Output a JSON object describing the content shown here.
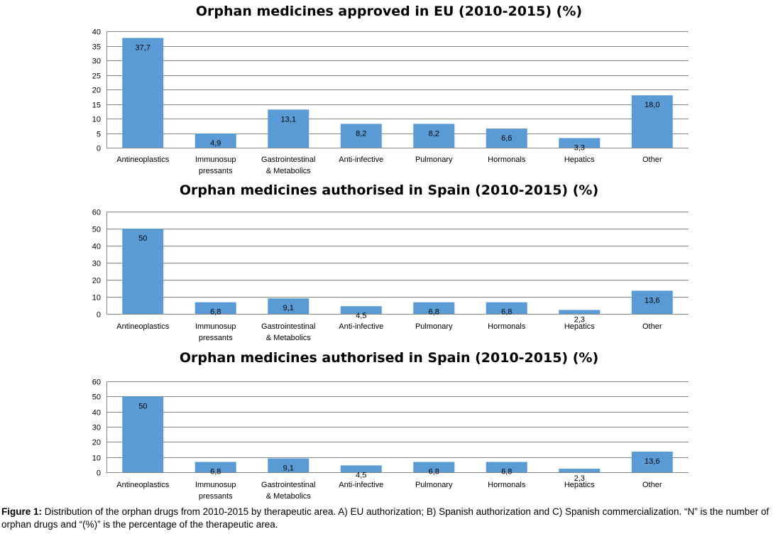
{
  "chart_data": [
    {
      "type": "bar",
      "title": "Orphan medicines approved in EU (2010-2015)  (%)",
      "categories": [
        [
          "Antineoplastics"
        ],
        [
          "Immunosup",
          "pressants"
        ],
        [
          "Gastrointestinal",
          "& Metabolics"
        ],
        [
          "Anti-infective"
        ],
        [
          "Pulmonary"
        ],
        [
          "Hormonals"
        ],
        [
          "Hepatics"
        ],
        [
          "Other"
        ]
      ],
      "values": [
        37.7,
        4.9,
        13.1,
        8.2,
        8.2,
        6.6,
        3.3,
        18.0
      ],
      "value_labels": [
        "37,7",
        "4,9",
        "13,1",
        "8,2",
        "8,2",
        "6,6",
        "3,3",
        "18,0"
      ],
      "ylim": [
        0,
        40
      ],
      "yticks": [
        0,
        5,
        10,
        15,
        20,
        25,
        30,
        35,
        40
      ],
      "grid": true,
      "bar_color": "#5b9bd5"
    },
    {
      "type": "bar",
      "title": "Orphan medicines authorised in Spain (2010-2015)  (%)",
      "categories": [
        [
          "Antineoplastics"
        ],
        [
          "Immunosup",
          "pressants"
        ],
        [
          "Gastrointestinal",
          "& Metabolics"
        ],
        [
          "Anti-infective"
        ],
        [
          "Pulmonary"
        ],
        [
          "Hormonals"
        ],
        [
          "Hepatics"
        ],
        [
          "Other"
        ]
      ],
      "values": [
        50,
        6.8,
        9.1,
        4.5,
        6.8,
        6.8,
        2.3,
        13.6
      ],
      "value_labels": [
        "50",
        "6,8",
        "9,1",
        "4,5",
        "6,8",
        "6,8",
        "2,3",
        "13,6"
      ],
      "ylim": [
        0,
        60
      ],
      "yticks": [
        0,
        10,
        20,
        30,
        40,
        50,
        60
      ],
      "grid": true,
      "bar_color": "#5b9bd5"
    },
    {
      "type": "bar",
      "title": "Orphan medicines authorised in Spain (2010-2015)  (%)",
      "categories": [
        [
          "Antineoplastics"
        ],
        [
          "Immunosup",
          "pressants"
        ],
        [
          "Gastrointestinal",
          "& Metabolics"
        ],
        [
          "Anti-infective"
        ],
        [
          "Pulmonary"
        ],
        [
          "Hormonals"
        ],
        [
          "Hepatics"
        ],
        [
          "Other"
        ]
      ],
      "values": [
        50,
        6.8,
        9.1,
        4.5,
        6.8,
        6.8,
        2.3,
        13.6
      ],
      "value_labels": [
        "50",
        "6,8",
        "9,1",
        "4,5",
        "6,8",
        "6,8",
        "2,3",
        "13,6"
      ],
      "ylim": [
        0,
        60
      ],
      "yticks": [
        0,
        10,
        20,
        30,
        40,
        50,
        60
      ],
      "grid": true,
      "bar_color": "#5b9bd5"
    }
  ],
  "caption": {
    "label": "Figure 1:",
    "text": " Distribution of the orphan drugs from 2010-2015 by therapeutic area. A) EU authorization; B) Spanish authorization and C) Spanish commercialization. “N” is the number of orphan drugs and “(%)” is the percentage of the therapeutic area."
  }
}
